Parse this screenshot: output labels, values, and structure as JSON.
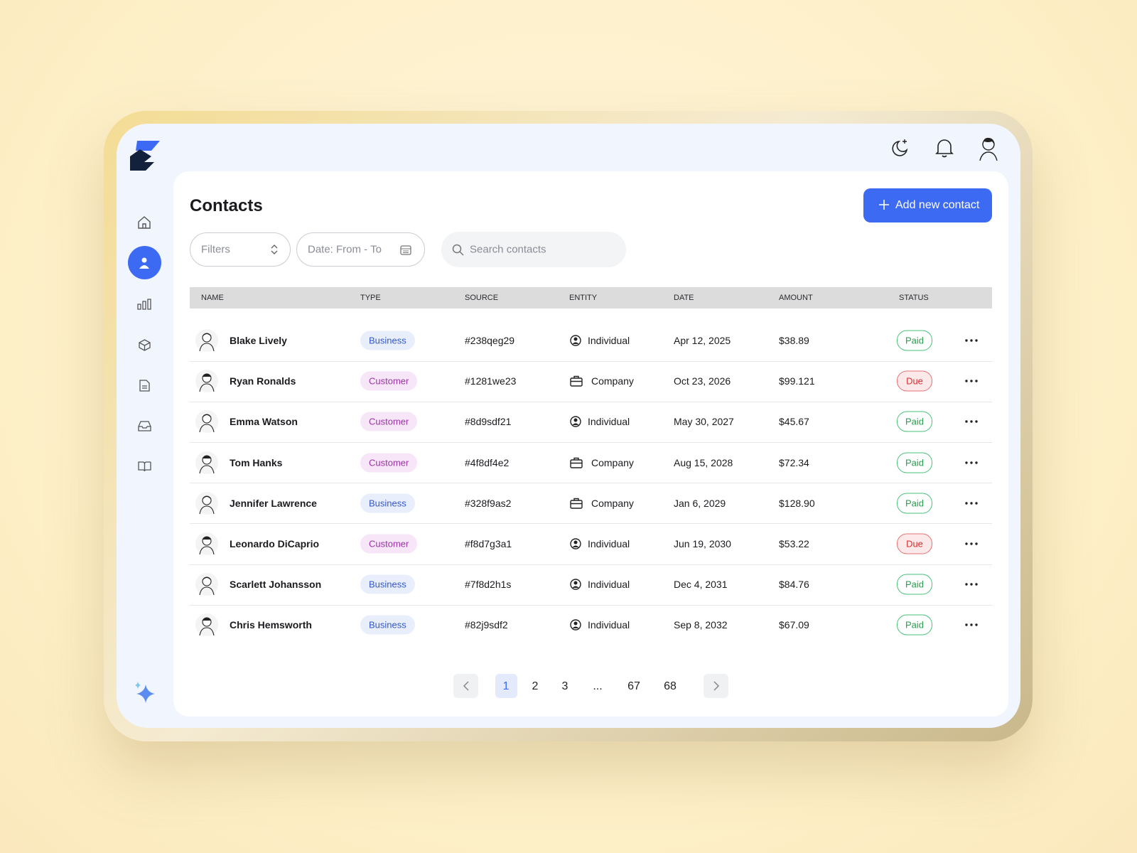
{
  "header": {
    "title": "Contacts",
    "add_button": "Add new contact"
  },
  "toolbar": {
    "filters": "Filters",
    "date": "Date: From - To",
    "search": "Search contacts"
  },
  "table": {
    "columns": [
      "NAME",
      "TYPE",
      "SOURCE",
      "ENTITY",
      "DATE",
      "AMOUNT",
      "STATUS"
    ],
    "rows": [
      [
        "Blake Lively",
        "Business",
        "#238qeg29",
        "Individual",
        "Apr 12, 2025",
        "$38.89",
        "Paid"
      ],
      [
        "Ryan Ronalds",
        "Customer",
        "#1281we23",
        "Company",
        "Oct 23, 2026",
        "$99.121",
        "Due"
      ],
      [
        "Emma Watson",
        "Customer",
        "#8d9sdf21",
        "Individual",
        "May 30, 2027",
        "$45.67",
        "Paid"
      ],
      [
        "Tom Hanks",
        "Customer",
        "#4f8df4e2",
        "Company",
        "Aug 15, 2028",
        "$72.34",
        "Paid"
      ],
      [
        "Jennifer Lawrence",
        "Business",
        "#328f9as2",
        "Company",
        "Jan 6, 2029",
        "$128.90",
        "Paid"
      ],
      [
        "Leonardo DiCaprio",
        "Customer",
        "#f8d7g3a1",
        "Individual",
        "Jun 19, 2030",
        "$53.22",
        "Due"
      ],
      [
        "Scarlett Johansson",
        "Business",
        "#7f8d2h1s",
        "Individual",
        "Dec 4, 2031",
        "$84.76",
        "Paid"
      ],
      [
        "Chris Hemsworth",
        "Business",
        "#82j9sdf2",
        "Individual",
        "Sep 8, 2032",
        "$67.09",
        "Paid"
      ]
    ]
  },
  "pagination": {
    "pages": [
      "1",
      "2",
      "3",
      "...",
      "67",
      "68"
    ],
    "current": 0
  }
}
